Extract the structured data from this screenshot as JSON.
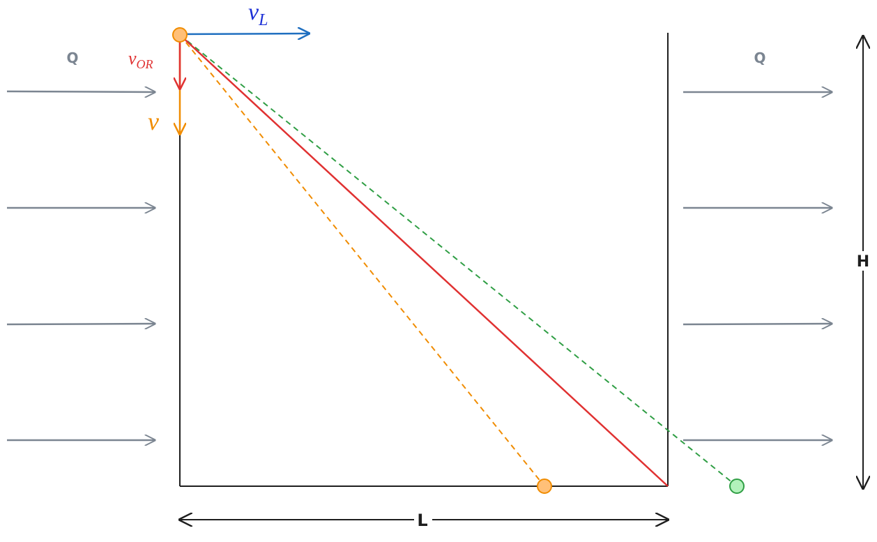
{
  "vectors": [
    {
      "symbol": "v",
      "subscript": "L"
    },
    {
      "symbol": "v",
      "subscript": "OR"
    },
    {
      "symbol": "v"
    }
  ],
  "flow_labels": [
    "Q",
    "Q"
  ],
  "dimensions": {
    "height": "H",
    "length": "L"
  }
}
